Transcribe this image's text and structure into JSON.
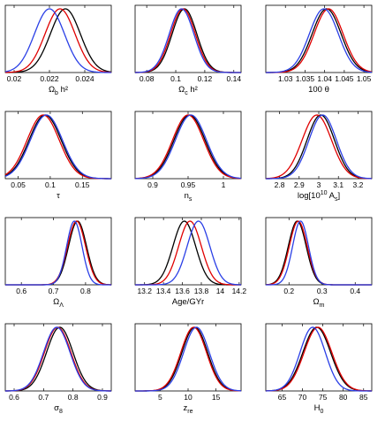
{
  "colors": {
    "black_series": "#000000",
    "red_series": "#e00000",
    "blue_series": "#2a3fe6",
    "axis": "#000000"
  },
  "chart_data": [
    {
      "type": "line",
      "xlabel_main": "Ω",
      "xlabel_sub": "b",
      "xlabel_sup": "",
      "xlabel_after": " h²",
      "xlim": [
        0.0195,
        0.0255
      ],
      "ticks": [
        0.02,
        0.022,
        0.024
      ],
      "tick_labels": [
        "0.02",
        "0.022",
        "0.024"
      ],
      "series": [
        {
          "color": "black",
          "peaks": [
            [
              0.0229,
              0.00085
            ]
          ]
        },
        {
          "color": "red",
          "peaks": [
            [
              0.0226,
              0.00085
            ]
          ]
        },
        {
          "color": "blue",
          "peaks": [
            [
              0.022,
              0.00085
            ]
          ]
        }
      ]
    },
    {
      "type": "line",
      "xlabel_main": "Ω",
      "xlabel_sub": "c",
      "xlabel_sup": "",
      "xlabel_after": " h²",
      "xlim": [
        0.072,
        0.145
      ],
      "ticks": [
        0.08,
        0.1,
        0.12,
        0.14
      ],
      "tick_labels": [
        "0.08",
        "0.1",
        "0.12",
        "0.14"
      ],
      "series": [
        {
          "color": "black",
          "peaks": [
            [
              0.106,
              0.0085
            ]
          ]
        },
        {
          "color": "red",
          "peaks": [
            [
              0.105,
              0.0085
            ]
          ]
        },
        {
          "color": "blue",
          "peaks": [
            [
              0.104,
              0.0085
            ]
          ]
        }
      ]
    },
    {
      "type": "line",
      "xlabel_main": "100 θ",
      "xlabel_sub": "",
      "xlabel_sup": "",
      "xlabel_after": "",
      "xlim": [
        1.025,
        1.052
      ],
      "ticks": [
        1.03,
        1.035,
        1.04,
        1.045,
        1.05
      ],
      "tick_labels": [
        "1.03",
        "1.035",
        "1.04",
        "1.045",
        "1.05"
      ],
      "series": [
        {
          "color": "black",
          "peaks": [
            [
              1.0405,
              0.0037
            ]
          ]
        },
        {
          "color": "red",
          "peaks": [
            [
              1.041,
              0.0037
            ]
          ]
        },
        {
          "color": "blue",
          "peaks": [
            [
              1.0398,
              0.0037
            ]
          ]
        }
      ]
    },
    {
      "type": "line",
      "xlabel_main": "τ",
      "xlabel_sub": "",
      "xlabel_sup": "",
      "xlabel_after": "",
      "xlim": [
        0.03,
        0.195
      ],
      "ticks": [
        0.05,
        0.1,
        0.15
      ],
      "tick_labels": [
        "0.05",
        "0.1",
        "0.15"
      ],
      "series": [
        {
          "color": "black",
          "peaks": [
            [
              0.092,
              0.025
            ]
          ]
        },
        {
          "color": "red",
          "peaks": [
            [
              0.089,
              0.025
            ]
          ]
        },
        {
          "color": "blue",
          "peaks": [
            [
              0.094,
              0.025
            ]
          ]
        }
      ]
    },
    {
      "type": "line",
      "xlabel_main": "n",
      "xlabel_sub": "s",
      "xlabel_sup": "",
      "xlabel_after": "",
      "xlim": [
        0.875,
        1.025
      ],
      "ticks": [
        0.9,
        0.95,
        1.0
      ],
      "tick_labels": [
        "0.9",
        "0.95",
        "1"
      ],
      "series": [
        {
          "color": "black",
          "peaks": [
            [
              0.952,
              0.022
            ]
          ]
        },
        {
          "color": "red",
          "peaks": [
            [
              0.95,
              0.022
            ]
          ]
        },
        {
          "color": "blue",
          "peaks": [
            [
              0.954,
              0.022
            ]
          ]
        }
      ]
    },
    {
      "type": "line",
      "xlabel_main": "log[10",
      "xlabel_sub": "",
      "xlabel_sup": "10",
      "xlabel_after": " A",
      "xlabel_after_sub": "s",
      "xlabel_end": "]",
      "xlim": [
        2.73,
        3.27
      ],
      "ticks": [
        2.8,
        2.9,
        3.0,
        3.1,
        3.2
      ],
      "tick_labels": [
        "2.8",
        "2.9",
        "3",
        "3.1",
        "3.2"
      ],
      "series": [
        {
          "color": "black",
          "peaks": [
            [
              3.01,
              0.07
            ]
          ]
        },
        {
          "color": "red",
          "peaks": [
            [
              2.99,
              0.075
            ]
          ]
        },
        {
          "color": "blue",
          "peaks": [
            [
              3.02,
              0.07
            ]
          ]
        }
      ]
    },
    {
      "type": "line",
      "xlabel_main": "Ω",
      "xlabel_sub": "Λ",
      "xlabel_sup": "",
      "xlabel_after": "",
      "xlim": [
        0.55,
        0.88
      ],
      "ticks": [
        0.6,
        0.7,
        0.8
      ],
      "tick_labels": [
        "0.6",
        "0.7",
        "0.8"
      ],
      "series": [
        {
          "color": "black",
          "peaks": [
            [
              0.775,
              0.028
            ]
          ]
        },
        {
          "color": "red",
          "peaks": [
            [
              0.772,
              0.028
            ]
          ]
        },
        {
          "color": "blue",
          "peaks": [
            [
              0.765,
              0.024
            ]
          ]
        }
      ]
    },
    {
      "type": "line",
      "xlabel_main": "Age/GYr",
      "xlabel_sub": "",
      "xlabel_sup": "",
      "xlabel_after": "",
      "xlim": [
        13.1,
        14.22
      ],
      "ticks": [
        13.2,
        13.4,
        13.6,
        13.8,
        14.0,
        14.2
      ],
      "tick_labels": [
        "13.2",
        "13.4",
        "13.6",
        "13.8",
        "14",
        "14.2"
      ],
      "series": [
        {
          "color": "black",
          "peaks": [
            [
              13.62,
              0.12
            ]
          ]
        },
        {
          "color": "red",
          "peaks": [
            [
              13.68,
              0.12
            ]
          ]
        },
        {
          "color": "blue",
          "peaks": [
            [
              13.77,
              0.12
            ]
          ]
        }
      ]
    },
    {
      "type": "line",
      "xlabel_main": "Ω",
      "xlabel_sub": "m",
      "xlabel_sup": "",
      "xlabel_after": "",
      "xlim": [
        0.13,
        0.45
      ],
      "ticks": [
        0.2,
        0.3,
        0.4
      ],
      "tick_labels": [
        "0.2",
        "0.3",
        "0.4"
      ],
      "series": [
        {
          "color": "black",
          "peaks": [
            [
              0.225,
              0.027
            ]
          ]
        },
        {
          "color": "red",
          "peaks": [
            [
              0.228,
              0.027
            ]
          ]
        },
        {
          "color": "blue",
          "peaks": [
            [
              0.235,
              0.024
            ]
          ]
        }
      ]
    },
    {
      "type": "line",
      "xlabel_main": "σ",
      "xlabel_sub": "8",
      "xlabel_sup": "",
      "xlabel_after": "",
      "xlim": [
        0.57,
        0.93
      ],
      "ticks": [
        0.6,
        0.7,
        0.8,
        0.9
      ],
      "tick_labels": [
        "0.6",
        "0.7",
        "0.8",
        "0.9"
      ],
      "series": [
        {
          "color": "black",
          "peaks": [
            [
              0.755,
              0.045
            ]
          ]
        },
        {
          "color": "red",
          "peaks": [
            [
              0.748,
              0.045
            ]
          ]
        },
        {
          "color": "blue",
          "peaks": [
            [
              0.745,
              0.045
            ]
          ]
        }
      ]
    },
    {
      "type": "line",
      "xlabel_main": "z",
      "xlabel_sub": "re",
      "xlabel_sup": "",
      "xlabel_after": "",
      "xlim": [
        0.5,
        19.5
      ],
      "ticks": [
        5,
        10,
        15
      ],
      "tick_labels": [
        "5",
        "10",
        "15"
      ],
      "series": [
        {
          "color": "black",
          "peaks": [
            [
              11.2,
              2.3
            ]
          ]
        },
        {
          "color": "red",
          "peaks": [
            [
              11.0,
              2.3
            ]
          ]
        },
        {
          "color": "blue",
          "peaks": [
            [
              11.5,
              2.3
            ]
          ]
        }
      ]
    },
    {
      "type": "line",
      "xlabel_main": "H",
      "xlabel_sub": "0",
      "xlabel_sup": "",
      "xlabel_after": "",
      "xlim": [
        61,
        87
      ],
      "ticks": [
        65,
        70,
        75,
        80,
        85
      ],
      "tick_labels": [
        "65",
        "70",
        "75",
        "80",
        "85"
      ],
      "series": [
        {
          "color": "black",
          "peaks": [
            [
              73.5,
              3.4
            ]
          ]
        },
        {
          "color": "red",
          "peaks": [
            [
              73.8,
              3.4
            ]
          ]
        },
        {
          "color": "blue",
          "peaks": [
            [
              72.5,
              3.1
            ]
          ]
        }
      ]
    }
  ]
}
